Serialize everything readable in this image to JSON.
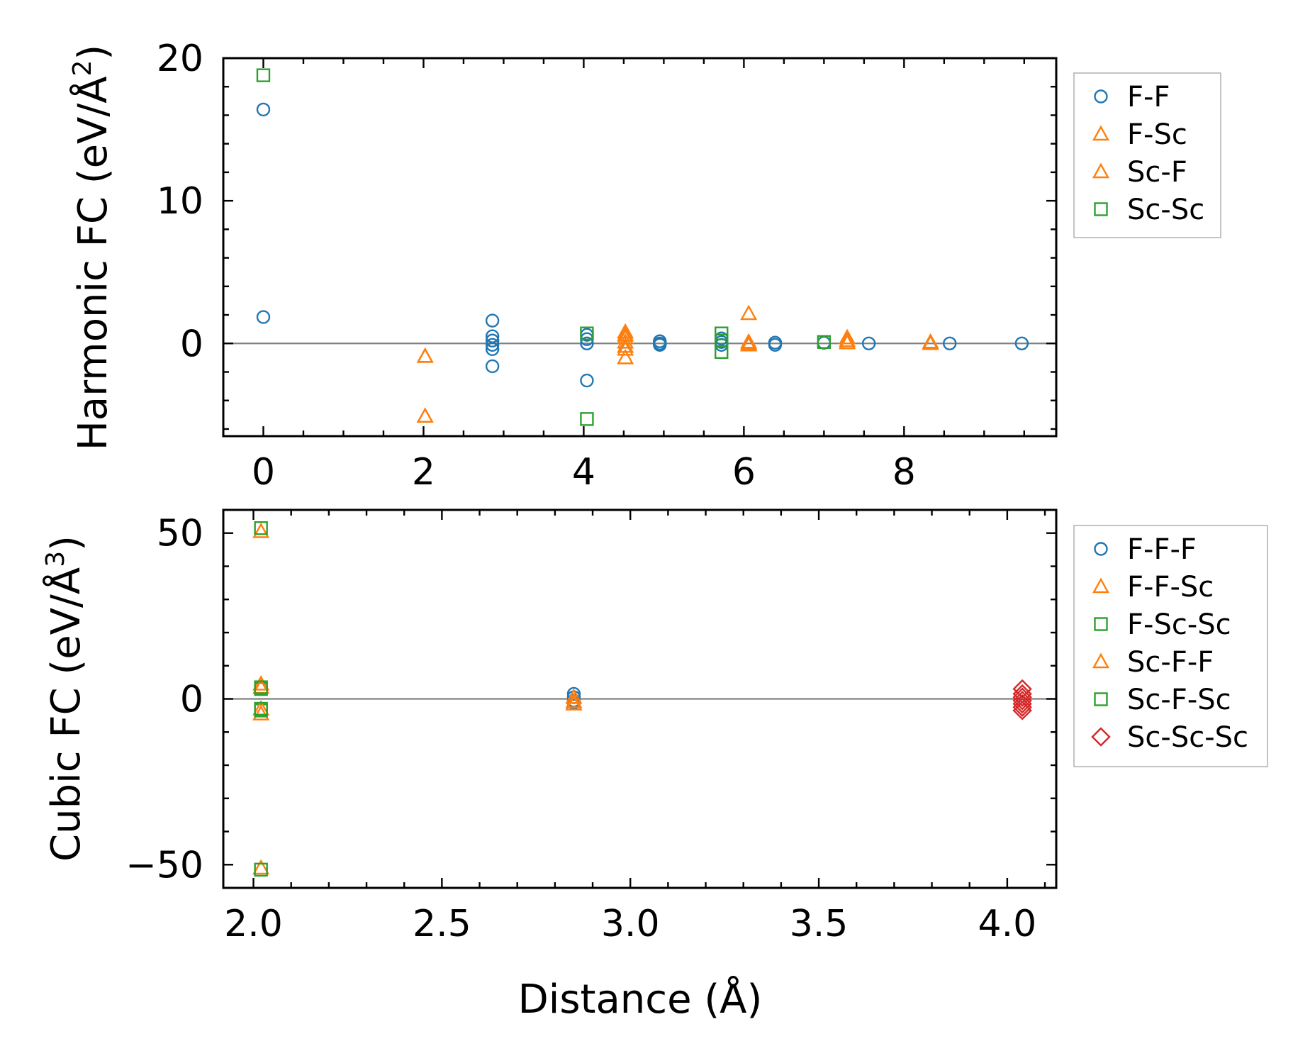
{
  "colors": {
    "blue": "#1f77b4",
    "orange": "#ff7f0e",
    "green": "#2ca02c",
    "red": "#d62728",
    "zero_line": "#808080",
    "axes": "#000000"
  },
  "xlabel": "Distance (Å)",
  "chart_data": [
    {
      "type": "scatter",
      "title": "",
      "ylabel": "Harmonic FC (eV/Å²)",
      "ylabel_parts": [
        "Harmonic FC (eV/Å",
        "2",
        ")"
      ],
      "xlim": [
        -0.5,
        9.9
      ],
      "ylim": [
        -6.5,
        20
      ],
      "xticks": [
        0,
        2,
        4,
        6,
        8
      ],
      "xtick_labels": [
        "0",
        "2",
        "4",
        "6",
        "8"
      ],
      "yticks": [
        0,
        10,
        20
      ],
      "ytick_labels": [
        "0",
        "10",
        "20"
      ],
      "x_minor_step": 0.5,
      "y_minor_step": 2,
      "zero_line": true,
      "legend_position": "outside-right-top",
      "series": [
        {
          "name": "F-F",
          "marker": "circle",
          "color": "#1f77b4",
          "points": [
            [
              0,
              16.4
            ],
            [
              0,
              1.85
            ],
            [
              2.86,
              1.6
            ],
            [
              2.86,
              0.5
            ],
            [
              2.86,
              0.2
            ],
            [
              2.86,
              -0.1
            ],
            [
              2.86,
              -0.4
            ],
            [
              2.86,
              -1.6
            ],
            [
              4.04,
              0.6
            ],
            [
              4.04,
              0.3
            ],
            [
              4.04,
              0.0
            ],
            [
              4.04,
              -2.6
            ],
            [
              4.95,
              0.15
            ],
            [
              4.95,
              0.0
            ],
            [
              4.95,
              -0.1
            ],
            [
              5.72,
              0.35
            ],
            [
              5.72,
              0.1
            ],
            [
              5.72,
              -0.1
            ],
            [
              6.39,
              0.05
            ],
            [
              6.39,
              -0.1
            ],
            [
              7.0,
              0.05
            ],
            [
              7.56,
              0.0
            ],
            [
              8.57,
              0.0
            ],
            [
              9.47,
              0.0
            ]
          ]
        },
        {
          "name": "F-Sc",
          "marker": "triangle",
          "color": "#ff7f0e",
          "points": [
            [
              2.02,
              -0.9
            ],
            [
              2.02,
              -5.1
            ],
            [
              4.52,
              0.8
            ],
            [
              4.52,
              0.4
            ],
            [
              4.52,
              0.1
            ],
            [
              4.52,
              -0.4
            ],
            [
              4.52,
              -1.0
            ],
            [
              6.06,
              2.1
            ],
            [
              6.06,
              0.1
            ],
            [
              6.06,
              -0.1
            ],
            [
              7.29,
              0.4
            ],
            [
              7.29,
              0.05
            ],
            [
              8.33,
              0.0
            ]
          ]
        },
        {
          "name": "Sc-F",
          "marker": "triangle",
          "color": "#ff7f0e",
          "points": [
            [
              2.02,
              -0.9
            ],
            [
              2.02,
              -5.1
            ],
            [
              4.52,
              0.6
            ],
            [
              4.52,
              -0.2
            ],
            [
              6.06,
              0.0
            ],
            [
              7.29,
              0.2
            ],
            [
              8.33,
              0.1
            ]
          ]
        },
        {
          "name": "Sc-Sc",
          "marker": "square",
          "color": "#2ca02c",
          "points": [
            [
              0,
              18.8
            ],
            [
              4.04,
              0.7
            ],
            [
              4.04,
              -5.3
            ],
            [
              5.72,
              0.7
            ],
            [
              5.72,
              0.2
            ],
            [
              5.72,
              -0.6
            ],
            [
              7.0,
              0.1
            ]
          ]
        }
      ]
    },
    {
      "type": "scatter",
      "title": "",
      "ylabel": "Cubic FC (eV/Å³)",
      "ylabel_parts": [
        "Cubic FC (eV/Å",
        "3",
        ")"
      ],
      "xlim": [
        1.92,
        4.13
      ],
      "ylim": [
        -57,
        57
      ],
      "xticks": [
        2.0,
        2.5,
        3.0,
        3.5,
        4.0
      ],
      "xtick_labels": [
        "2.0",
        "2.5",
        "3.0",
        "3.5",
        "4.0"
      ],
      "yticks": [
        -50,
        0,
        50
      ],
      "ytick_labels": [
        "−50",
        "0",
        "50"
      ],
      "x_minor_step": 0.1,
      "y_minor_step": 10,
      "zero_line": true,
      "legend_position": "outside-right-top",
      "series": [
        {
          "name": "F-F-F",
          "marker": "circle",
          "color": "#1f77b4",
          "points": [
            [
              2.85,
              1.5
            ],
            [
              2.85,
              0.5
            ],
            [
              2.85,
              -0.5
            ],
            [
              2.85,
              -1.2
            ]
          ]
        },
        {
          "name": "F-F-Sc",
          "marker": "triangle",
          "color": "#ff7f0e",
          "points": [
            [
              2.02,
              50.5
            ],
            [
              2.02,
              4.5
            ],
            [
              2.02,
              -4.5
            ],
            [
              2.02,
              -51.0
            ],
            [
              2.85,
              0.5
            ],
            [
              2.85,
              -1.5
            ]
          ]
        },
        {
          "name": "F-Sc-Sc",
          "marker": "square",
          "color": "#2ca02c",
          "points": [
            [
              2.02,
              51.5
            ],
            [
              2.02,
              3.0
            ],
            [
              2.02,
              -3.5
            ],
            [
              2.02,
              -51.5
            ]
          ]
        },
        {
          "name": "Sc-F-F",
          "marker": "triangle",
          "color": "#ff7f0e",
          "points": [
            [
              2.02,
              3.5
            ],
            [
              2.02,
              -3.0
            ],
            [
              2.85,
              -0.8
            ]
          ]
        },
        {
          "name": "Sc-F-Sc",
          "marker": "square",
          "color": "#2ca02c",
          "points": [
            [
              2.02,
              3.5
            ],
            [
              2.02,
              -3.0
            ]
          ]
        },
        {
          "name": "Sc-Sc-Sc",
          "marker": "diamond",
          "color": "#d62728",
          "points": [
            [
              4.04,
              3.0
            ],
            [
              4.04,
              1.5
            ],
            [
              4.04,
              0.5
            ],
            [
              4.04,
              -0.5
            ],
            [
              4.04,
              -1.5
            ],
            [
              4.04,
              -2.5
            ],
            [
              4.04,
              -3.5
            ]
          ]
        }
      ]
    }
  ]
}
